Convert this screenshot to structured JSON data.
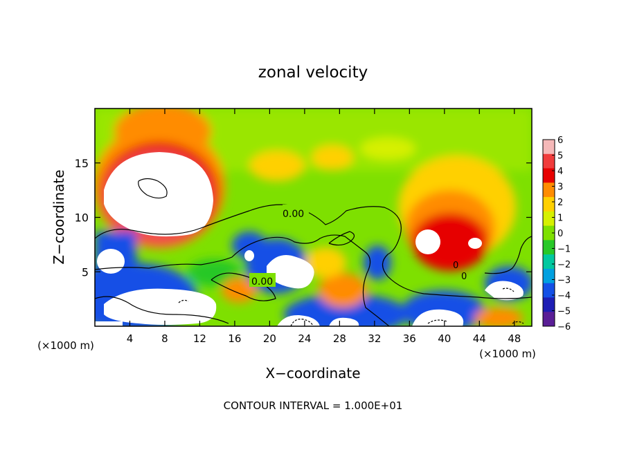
{
  "chart_data": {
    "type": "heatmap",
    "title": "zonal velocity",
    "xlabel": "X−coordinate",
    "ylabel": "Z−coordinate",
    "xunit": "(×1000 m)",
    "yunit": "(×1000 m)",
    "xlim": [
      0,
      50
    ],
    "ylim": [
      0,
      20
    ],
    "xticks": [
      4,
      8,
      12,
      16,
      20,
      24,
      28,
      32,
      36,
      40,
      44,
      48
    ],
    "yticks": [
      5,
      10,
      15
    ],
    "colorbar": {
      "range": [
        -6,
        6
      ],
      "ticks": [
        "6",
        "5",
        "4",
        "3",
        "2",
        "1",
        "0",
        "−1",
        "−2",
        "−3",
        "−4",
        "−5",
        "−6"
      ],
      "colors": [
        "#f5b8b8",
        "#f03c3c",
        "#e60000",
        "#ff8c00",
        "#ffd000",
        "#d6f000",
        "#7ee000",
        "#28c828",
        "#00c8a0",
        "#00a0e0",
        "#1450e6",
        "#1e1eb4",
        "#5a1e96"
      ],
      "above_max_color": "#ffffff",
      "below_min_color": "#ffffff"
    },
    "contour_labels": [
      "0.00",
      "0.00",
      "0",
      "0"
    ],
    "contour_interval_label": "CONTOUR INTERVAL = 1.000E+01"
  }
}
